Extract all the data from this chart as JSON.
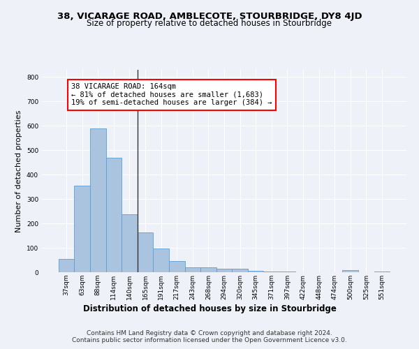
{
  "title": "38, VICARAGE ROAD, AMBLECOTE, STOURBRIDGE, DY8 4JD",
  "subtitle": "Size of property relative to detached houses in Stourbridge",
  "xlabel": "Distribution of detached houses by size in Stourbridge",
  "ylabel": "Number of detached properties",
  "categories": [
    "37sqm",
    "63sqm",
    "88sqm",
    "114sqm",
    "140sqm",
    "165sqm",
    "191sqm",
    "217sqm",
    "243sqm",
    "268sqm",
    "294sqm",
    "320sqm",
    "345sqm",
    "371sqm",
    "397sqm",
    "422sqm",
    "448sqm",
    "474sqm",
    "500sqm",
    "525sqm",
    "551sqm"
  ],
  "values": [
    55,
    355,
    590,
    468,
    237,
    163,
    96,
    46,
    20,
    19,
    15,
    13,
    5,
    4,
    2,
    1,
    1,
    0,
    8,
    1,
    3
  ],
  "bar_color": "#aac4e0",
  "bar_edge_color": "#5a9fd4",
  "vline_color": "#333333",
  "annotation_line1": "38 VICARAGE ROAD: 164sqm",
  "annotation_line2": "← 81% of detached houses are smaller (1,683)",
  "annotation_line3": "19% of semi-detached houses are larger (384) →",
  "annotation_box_color": "white",
  "annotation_box_edge_color": "red",
  "ylim": [
    0,
    830
  ],
  "yticks": [
    0,
    100,
    200,
    300,
    400,
    500,
    600,
    700,
    800
  ],
  "footer_line1": "Contains HM Land Registry data © Crown copyright and database right 2024.",
  "footer_line2": "Contains public sector information licensed under the Open Government Licence v3.0.",
  "bg_color": "#eef2f8",
  "grid_color": "white",
  "title_fontsize": 9.5,
  "subtitle_fontsize": 8.5,
  "ylabel_fontsize": 8,
  "xlabel_fontsize": 8.5,
  "tick_fontsize": 6.5,
  "annotation_fontsize": 7.5,
  "footer_fontsize": 6.5
}
